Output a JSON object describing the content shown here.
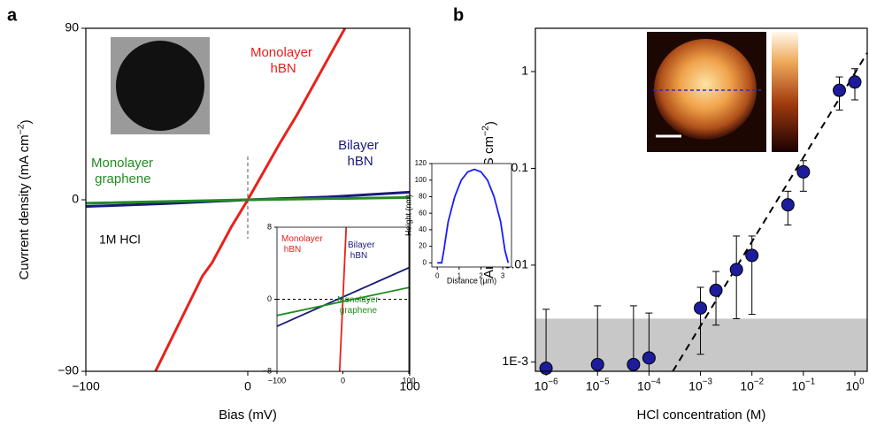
{
  "chart_data": [
    {
      "type": "line",
      "panel": "a",
      "xlabel": "Bias (mV)",
      "ylabel": "Cuvrrent density (mA cm−2)",
      "annotation": "1M HCl",
      "xlim": [
        -100,
        100
      ],
      "ylim": [
        -90,
        90
      ],
      "xticks": [
        {
          "value": -100,
          "label": "−100"
        },
        0,
        100
      ],
      "yticks": [
        {
          "value": -90,
          "label": "−90"
        },
        0,
        90
      ],
      "series": [
        {
          "name": "Monolayer hBN",
          "color": "#e8211a",
          "x": [
            -57,
            -28,
            -22,
            -10,
            0,
            20,
            30,
            60
          ],
          "values": [
            -90,
            -40,
            -33,
            -14,
            0,
            30,
            44,
            90
          ]
        },
        {
          "name": "Bilayer hBN",
          "color": "#1a1a7a",
          "x": [
            -100,
            -50,
            0,
            50,
            100
          ],
          "values": [
            -3.5,
            -2,
            0,
            1.5,
            4
          ]
        },
        {
          "name": "Monolayer graphene",
          "color": "#228b22",
          "x": [
            -100,
            0,
            100
          ],
          "values": [
            -1.8,
            0,
            1.2
          ]
        }
      ]
    },
    {
      "type": "line",
      "xlim": [
        -100,
        100
      ],
      "ylim": [
        -8,
        8
      ],
      "xticks": [
        {
          "value": -100,
          "label": "−100"
        },
        0,
        100
      ],
      "yticks": [
        {
          "value": -8,
          "label": "−8"
        },
        0,
        8
      ],
      "zero_line": true,
      "series": [
        {
          "name": "Monolayer hBN",
          "color": "#e8211a",
          "x": [
            -5,
            5
          ],
          "values": [
            -8,
            8
          ]
        },
        {
          "name": "Bilayer hBN",
          "color": "#1a1a7a",
          "x": [
            -100,
            100
          ],
          "values": [
            -3,
            3.5
          ]
        },
        {
          "name": "Monolayer graphene",
          "color": "#228b22",
          "x": [
            -100,
            100
          ],
          "values": [
            -1.8,
            1.3
          ]
        }
      ]
    },
    {
      "type": "scatter",
      "panel": "b",
      "xlabel": "HCl concentration (M)",
      "ylabel": "Areal conductivity (S cm−2)",
      "xlog": true,
      "ylog": true,
      "xlim": [
        6.2e-07,
        1.74
      ],
      "ylim": [
        0.0008,
        2.8
      ],
      "xticks": [
        {
          "value": 1e-06,
          "label": "10−6"
        },
        {
          "value": 1e-05,
          "label": "10−5"
        },
        {
          "value": 0.0001,
          "label": "10−4"
        },
        {
          "value": 0.001,
          "label": "10−3"
        },
        {
          "value": 0.01,
          "label": "10−2"
        },
        {
          "value": 0.1,
          "label": "10−1"
        },
        {
          "value": 1,
          "label": "100"
        }
      ],
      "yticks": [
        {
          "value": 0.001,
          "label": "1E-3"
        },
        0.01,
        0.1,
        1
      ],
      "color": "#1c1c9c",
      "x": [
        1e-06,
        1e-05,
        5e-05,
        0.0001,
        0.001,
        0.002,
        0.005,
        0.01,
        0.05,
        0.1,
        0.5,
        1
      ],
      "values": [
        0.00086,
        0.00094,
        0.00094,
        0.0011,
        0.0036,
        0.0055,
        0.009,
        0.0126,
        0.042,
        0.092,
        0.64,
        0.78
      ],
      "lower": [
        0.0008,
        0.0008,
        0.0008,
        0.0008,
        0.0012,
        0.0024,
        0.0028,
        0.0031,
        0.026,
        0.058,
        0.4,
        0.51
      ],
      "upper": [
        0.0035,
        0.0038,
        0.0038,
        0.0032,
        0.0059,
        0.0086,
        0.02,
        0.02,
        0.058,
        0.12,
        0.88,
        1.07
      ],
      "fit": {
        "x": [
          0.00029,
          1.74
        ],
        "values": [
          0.0008,
          1.56
        ]
      },
      "shade": 0.0028,
      "shade_color": "#c8c8c8"
    },
    {
      "type": "line",
      "xlabel": "Distance (µm)",
      "ylabel": "Height (nm)",
      "xlim": [
        -0.25,
        3.4
      ],
      "ylim": [
        -5,
        120
      ],
      "xticks": [
        0,
        1,
        2,
        3
      ],
      "yticks": [
        0,
        20,
        40,
        60,
        80,
        100,
        120
      ],
      "series": [
        {
          "color": "#1a1aff",
          "x": [
            0,
            0.2,
            0.3,
            0.5,
            0.8,
            1.1,
            1.4,
            1.7,
            2.0,
            2.3,
            2.6,
            2.9,
            3.1,
            3.25
          ],
          "values": [
            0,
            0,
            15,
            50,
            80,
            100,
            110,
            113,
            110,
            100,
            80,
            50,
            15,
            0
          ]
        }
      ]
    }
  ]
}
